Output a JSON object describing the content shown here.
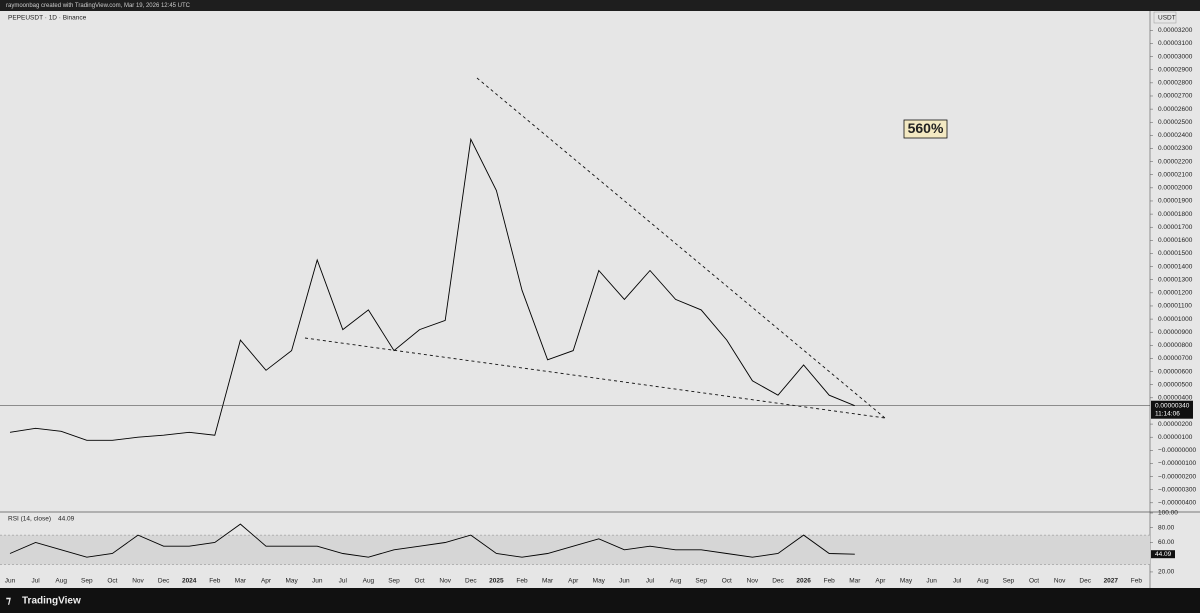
{
  "header": {
    "attribution": "raymoonbag created with TradingView.com, Mar 19, 2026 12:45 UTC",
    "symbol": "PEPEUSDT · 1D · Binance",
    "currency": "USDT",
    "annotation": "560%"
  },
  "footer": {
    "brand": "TradingView"
  },
  "chart_data": [
    {
      "type": "line",
      "color": "#000000",
      "categories": [
        "Jun",
        "Jul",
        "Aug",
        "Sep",
        "Oct",
        "Nov",
        "Dec",
        "2024",
        "Feb",
        "Mar",
        "Apr",
        "May",
        "Jun",
        "Jul",
        "Aug",
        "Sep",
        "Oct",
        "Nov",
        "Dec",
        "2025",
        "Feb",
        "Mar",
        "Apr",
        "May",
        "Jun",
        "Jul",
        "Aug",
        "Sep",
        "Oct",
        "Nov",
        "Dec",
        "2026",
        "Feb",
        "Mar",
        "Apr",
        "May",
        "Jun",
        "Jul",
        "Aug",
        "Sep",
        "Oct",
        "Nov",
        "Dec",
        "2027",
        "Feb"
      ],
      "series": [
        {
          "name": "PEPEUSDT",
          "color": "#000000",
          "values": [
            1.37e-06,
            1.68e-06,
            1.45e-06,
            7.6e-07,
            7.6e-07,
            1e-06,
            1.15e-06,
            1.37e-06,
            1.15e-06,
            8.4e-06,
            6.1e-06,
            7.6e-06,
            1.45e-05,
            9.2e-06,
            1.07e-05,
            7.6e-06,
            9.2e-06,
            9.9e-06,
            2.37e-05,
            1.98e-05,
            1.22e-05,
            6.9e-06,
            7.6e-06,
            1.37e-05,
            1.15e-05,
            1.37e-05,
            1.15e-05,
            1.07e-05,
            8.4e-06,
            5.3e-06,
            4.2e-06,
            6.5e-06,
            4.2e-06,
            3.4e-06,
            null,
            null,
            null,
            null,
            null,
            null,
            null,
            null,
            null,
            null,
            null
          ]
        }
      ],
      "last_price": {
        "value": 3.4e-06,
        "label": "0.00000340"
      },
      "countdown": "11:14:06",
      "ylim": [
        -4.7e-06,
        3.34e-05
      ],
      "yticks": [
        {
          "value": 3.2e-05,
          "label": "0.00003200"
        },
        {
          "value": 3.1e-05,
          "label": "0.00003100"
        },
        {
          "value": 3e-05,
          "label": "0.00003000"
        },
        {
          "value": 2.9e-05,
          "label": "0.00002900"
        },
        {
          "value": 2.8e-05,
          "label": "0.00002800"
        },
        {
          "value": 2.7e-05,
          "label": "0.00002700"
        },
        {
          "value": 2.6e-05,
          "label": "0.00002600"
        },
        {
          "value": 2.5e-05,
          "label": "0.00002500"
        },
        {
          "value": 2.4e-05,
          "label": "0.00002400"
        },
        {
          "value": 2.3e-05,
          "label": "0.00002300"
        },
        {
          "value": 2.2e-05,
          "label": "0.00002200"
        },
        {
          "value": 2.1e-05,
          "label": "0.00002100"
        },
        {
          "value": 2e-05,
          "label": "0.00002000"
        },
        {
          "value": 1.9e-05,
          "label": "0.00001900"
        },
        {
          "value": 1.8e-05,
          "label": "0.00001800"
        },
        {
          "value": 1.7e-05,
          "label": "0.00001700"
        },
        {
          "value": 1.6e-05,
          "label": "0.00001600"
        },
        {
          "value": 1.5e-05,
          "label": "0.00001500"
        },
        {
          "value": 1.4e-05,
          "label": "0.00001400"
        },
        {
          "value": 1.3e-05,
          "label": "0.00001300"
        },
        {
          "value": 1.2e-05,
          "label": "0.00001200"
        },
        {
          "value": 1.1e-05,
          "label": "0.00001100"
        },
        {
          "value": 1e-05,
          "label": "0.00001000"
        },
        {
          "value": 9e-06,
          "label": "0.00000900"
        },
        {
          "value": 8e-06,
          "label": "0.00000800"
        },
        {
          "value": 7e-06,
          "label": "0.00000700"
        },
        {
          "value": 6e-06,
          "label": "0.00000600"
        },
        {
          "value": 5e-06,
          "label": "0.00000500"
        },
        {
          "value": 4e-06,
          "label": "0.00000400"
        },
        {
          "value": 2e-06,
          "label": "0.00000200"
        },
        {
          "value": 1e-06,
          "label": "0.00000100"
        },
        {
          "value": 0,
          "label": "−0.00000000"
        },
        {
          "value": -1e-06,
          "label": "−0.00000100"
        },
        {
          "value": -2e-06,
          "label": "−0.00000200"
        },
        {
          "value": -3e-06,
          "label": "−0.00000300"
        },
        {
          "value": -4e-06,
          "label": "−0.00000400"
        }
      ]
    },
    {
      "type": "line",
      "title": "RSI (14, close)",
      "band": [
        30,
        70
      ],
      "series": [
        {
          "name": "RSI",
          "color": "#000000",
          "values": [
            45,
            60,
            50,
            40,
            45,
            70,
            55,
            55,
            60,
            85,
            55,
            55,
            55,
            45,
            40,
            50,
            55,
            60,
            70,
            45,
            40,
            45,
            55,
            65,
            50,
            55,
            50,
            50,
            45,
            40,
            45,
            70,
            45,
            44.09,
            null,
            null,
            null,
            null,
            null,
            null,
            null,
            null,
            null,
            null,
            null
          ]
        }
      ],
      "ylim": [
        5,
        100
      ],
      "yticks": [
        {
          "value": 100,
          "label": "100.00"
        },
        {
          "value": 80,
          "label": "80.00"
        },
        {
          "value": 60,
          "label": "60.00"
        },
        {
          "value": 20,
          "label": "20.00"
        }
      ]
    }
  ]
}
